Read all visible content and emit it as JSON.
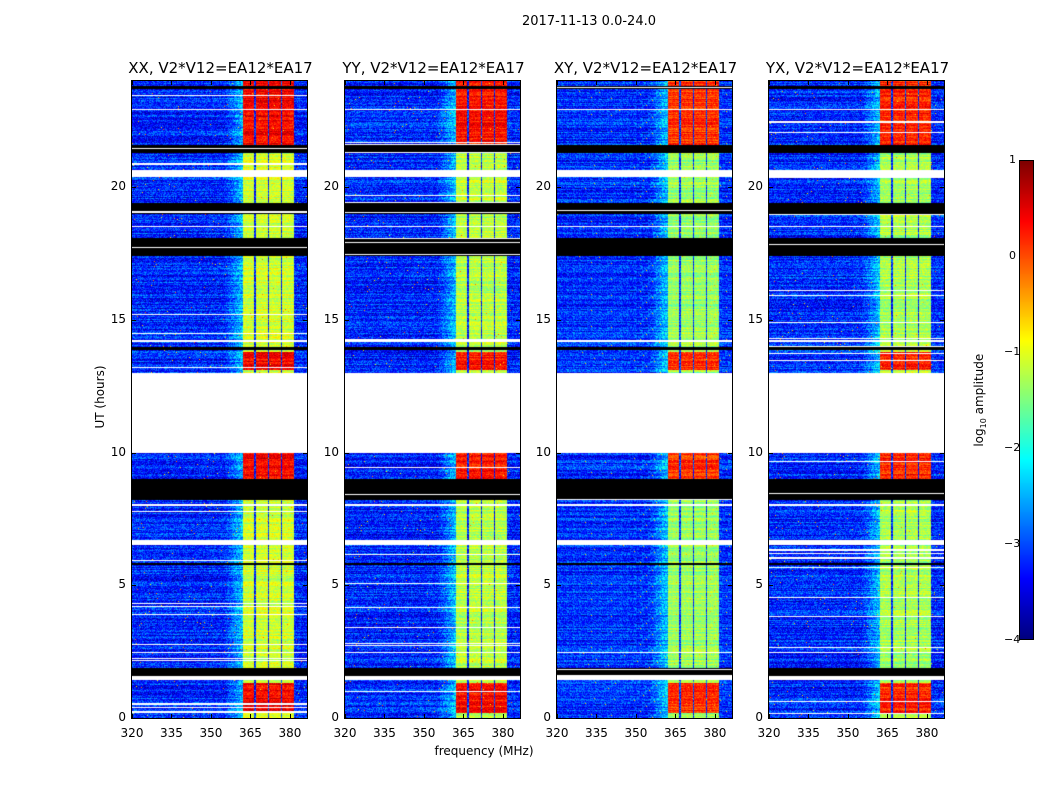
{
  "chart_data": {
    "type": "heatmap",
    "title": "2017-11-13 0.0-24.0",
    "xlabel": "frequency (MHz)",
    "ylabel": "UT (hours)",
    "xlim": [
      320,
      386.5
    ],
    "ylim": [
      0,
      24
    ],
    "xticks": [
      "320",
      "335",
      "350",
      "365",
      "380"
    ],
    "xtick_values": [
      320,
      335,
      350,
      365,
      380
    ],
    "yticks": [
      "0",
      "5",
      "10",
      "15",
      "20"
    ],
    "ytick_values": [
      0,
      5,
      10,
      15,
      20
    ],
    "panels": [
      {
        "title": "XX, V2*V12=EA12*EA17",
        "seed": 11,
        "band_offset": 0.1
      },
      {
        "title": "YY, V2*V12=EA12*EA17",
        "seed": 23,
        "band_offset": 0.0
      },
      {
        "title": "XY, V2*V12=EA12*EA17",
        "seed": 37,
        "band_offset": -0.2
      },
      {
        "title": "YX, V2*V12=EA12*EA17",
        "seed": 41,
        "band_offset": -0.1
      }
    ],
    "background_log_amp": -3.2,
    "band_log_amp": -1.2,
    "high_log_amp": 0.3,
    "bright_bands_mhz": [
      [
        362,
        366.5
      ],
      [
        367,
        371.5
      ],
      [
        372,
        376.5
      ],
      [
        377,
        381.5
      ]
    ],
    "high_amplitude_hours": [
      [
        0.2,
        1.3
      ],
      [
        9.0,
        10.0
      ],
      [
        13.1,
        13.8
      ],
      [
        21.6,
        24
      ]
    ],
    "no_data_hours": [
      [
        10.0,
        13.0
      ],
      [
        20.4,
        20.65
      ],
      [
        6.5,
        6.7
      ],
      [
        1.45,
        1.6
      ],
      [
        14.15,
        14.25
      ],
      [
        2.45,
        2.5
      ],
      [
        18.5,
        18.55
      ],
      [
        22.9,
        22.95
      ],
      [
        8.0,
        8.07
      ]
    ],
    "flagged_hours": [
      [
        21.3,
        21.6
      ],
      [
        19.0,
        19.4
      ],
      [
        17.4,
        18.1
      ],
      [
        8.2,
        9.0
      ],
      [
        1.6,
        1.9
      ],
      [
        13.85,
        13.97
      ],
      [
        5.75,
        5.85
      ],
      [
        23.7,
        23.8
      ]
    ],
    "colorbar": {
      "label_main": "log",
      "label_sub": "10",
      "label_rest": " amplitude",
      "range": [
        -4,
        1
      ],
      "ticks": [
        "1",
        "0",
        "−1",
        "−2",
        "−3",
        "−4"
      ],
      "tick_values": [
        1,
        0,
        -1,
        -2,
        -3,
        -4
      ]
    },
    "colormap": "jet"
  }
}
